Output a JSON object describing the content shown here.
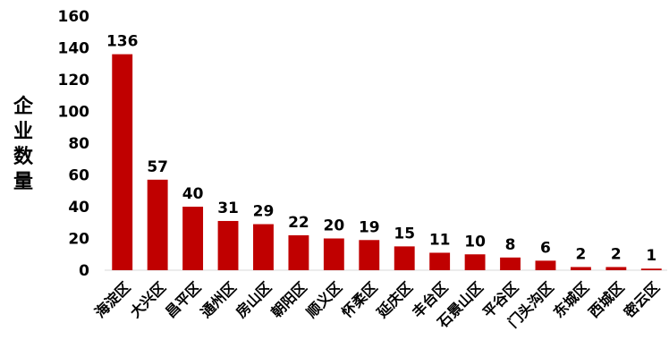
{
  "chart_data": {
    "type": "bar",
    "title": "",
    "xlabel": "",
    "ylabel": "企业数量",
    "ylim": [
      0,
      160
    ],
    "yticks": [
      0,
      20,
      40,
      60,
      80,
      100,
      120,
      140,
      160
    ],
    "grid": false,
    "bar_color": "#C00000",
    "categories": [
      "海淀区",
      "大兴区",
      "昌平区",
      "通州区",
      "房山区",
      "朝阳区",
      "顺义区",
      "怀柔区",
      "延庆区",
      "丰台区",
      "石景山区",
      "平谷区",
      "门头沟区",
      "东城区",
      "西城区",
      "密云区"
    ],
    "values": [
      136,
      57,
      40,
      31,
      29,
      22,
      20,
      19,
      15,
      11,
      10,
      8,
      6,
      2,
      2,
      1
    ]
  }
}
